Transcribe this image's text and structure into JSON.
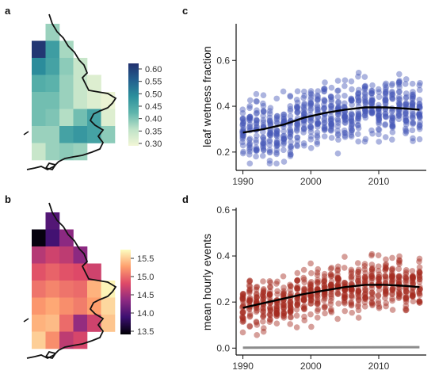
{
  "panels": {
    "a": {
      "label": "a"
    },
    "b": {
      "label": "b"
    },
    "c": {
      "label": "c"
    },
    "d": {
      "label": "d"
    }
  },
  "chart_data": [
    {
      "id": "a",
      "type": "heatmap",
      "title": "",
      "colorbar": {
        "ticks": [
          "0.60",
          "0.55",
          "0.50",
          "0.45",
          "0.40",
          "0.35",
          "0.30"
        ],
        "range": [
          0.27,
          0.63
        ],
        "colors": [
          "#f2f6d6",
          "#bfe3c8",
          "#5fb5ac",
          "#2b8f9c",
          "#235f8e",
          "#22316f"
        ]
      },
      "cells": [
        [
          null,
          0.37,
          null,
          null,
          null,
          null
        ],
        [
          0.62,
          0.46,
          0.36,
          null,
          null,
          null
        ],
        [
          0.49,
          0.45,
          0.38,
          0.33,
          null,
          null
        ],
        [
          0.43,
          0.42,
          0.37,
          0.33,
          0.3,
          null
        ],
        [
          0.4,
          0.4,
          0.37,
          0.33,
          0.3,
          0.28
        ],
        [
          0.4,
          0.39,
          0.35,
          0.4,
          0.45,
          0.3
        ],
        [
          0.37,
          0.37,
          0.45,
          0.47,
          0.45,
          0.38
        ],
        [
          0.33,
          0.37,
          0.38,
          0.37,
          null,
          null
        ]
      ]
    },
    {
      "id": "b",
      "type": "heatmap",
      "title": "",
      "colorbar": {
        "ticks": [
          "15.5",
          "15.0",
          "14.5",
          "14.0",
          "13.5"
        ],
        "range": [
          13.3,
          15.8
        ],
        "colors": [
          "#000004",
          "#3b0f70",
          "#8c2981",
          "#de4968",
          "#fe9f6d",
          "#fcfdbf"
        ]
      },
      "cells": [
        [
          null,
          13.95,
          null,
          null,
          null,
          null
        ],
        [
          13.35,
          13.85,
          14.3,
          null,
          null,
          null
        ],
        [
          14.55,
          14.7,
          14.6,
          14.3,
          null,
          null
        ],
        [
          14.85,
          14.95,
          14.85,
          14.8,
          14.7,
          null
        ],
        [
          15.05,
          15.15,
          15.05,
          15.0,
          15.4,
          15.75
        ],
        [
          15.25,
          15.35,
          15.2,
          15.1,
          15.3,
          15.6
        ],
        [
          15.4,
          15.45,
          15.0,
          14.35,
          14.7,
          15.5
        ],
        [
          15.55,
          15.2,
          14.6,
          14.75,
          null,
          null
        ]
      ]
    },
    {
      "id": "c",
      "type": "scatter",
      "ylabel": "leaf wetness fraction",
      "xlabel": "",
      "xlim": [
        1989,
        2017
      ],
      "ylim": [
        0.12,
        0.76
      ],
      "xticks": [
        "1990",
        "2000",
        "2010"
      ],
      "yticks": [
        "0.2",
        "0.4",
        "0.6"
      ],
      "point_color": "#4659b8",
      "line_color": "#000000",
      "year_mean": [
        0.285,
        0.29,
        0.29,
        0.3,
        0.29,
        0.27,
        0.29,
        0.3,
        0.33,
        0.34,
        0.36,
        0.36,
        0.37,
        0.37,
        0.37,
        0.36,
        0.38,
        0.39,
        0.39,
        0.4,
        0.37,
        0.4,
        0.39,
        0.42,
        0.37,
        0.38,
        0.39
      ],
      "trend": {
        "x": [
          1990,
          1993,
          1996,
          1999,
          2002,
          2005,
          2008,
          2011,
          2014,
          2016
        ],
        "y": [
          0.285,
          0.3,
          0.32,
          0.35,
          0.37,
          0.385,
          0.395,
          0.395,
          0.39,
          0.385
        ]
      }
    },
    {
      "id": "d",
      "type": "scatter",
      "ylabel": "mean hourly events",
      "xlabel": "",
      "xlim": [
        1989,
        2017
      ],
      "ylim": [
        -0.03,
        0.61
      ],
      "xticks": [
        "1990",
        "2000",
        "2010"
      ],
      "yticks": [
        "0.0",
        "0.2",
        "0.4",
        "0.6"
      ],
      "point_color": "#a52a1e",
      "line_color": "#000000",
      "baseline_color": "#8c8c8c",
      "year_mean": [
        0.18,
        0.19,
        0.18,
        0.2,
        0.2,
        0.18,
        0.2,
        0.21,
        0.22,
        0.24,
        0.25,
        0.24,
        0.25,
        0.26,
        0.25,
        0.25,
        0.26,
        0.27,
        0.28,
        0.28,
        0.27,
        0.28,
        0.28,
        0.3,
        0.26,
        0.26,
        0.27
      ],
      "trend": {
        "x": [
          1990,
          1993,
          1996,
          1999,
          2002,
          2005,
          2008,
          2011,
          2014,
          2016
        ],
        "y": [
          0.175,
          0.195,
          0.215,
          0.235,
          0.25,
          0.265,
          0.275,
          0.275,
          0.27,
          0.265
        ]
      },
      "baseline": {
        "x": [
          1990,
          2016
        ],
        "y": [
          0.002,
          0.004
        ]
      }
    }
  ]
}
